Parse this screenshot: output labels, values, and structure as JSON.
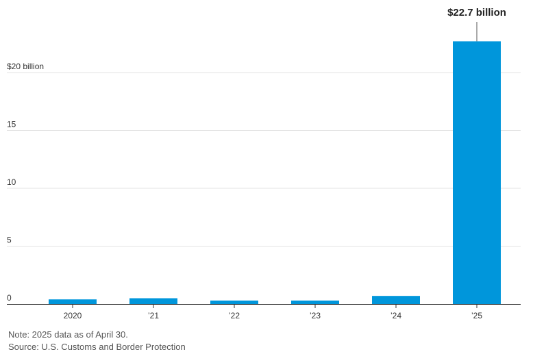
{
  "chart_data": {
    "type": "bar",
    "categories": [
      "2020",
      "’21",
      "’22",
      "’23",
      "’24",
      "’25"
    ],
    "values": [
      0.4,
      0.5,
      0.3,
      0.3,
      0.7,
      22.7
    ],
    "y_tick_values": [
      0,
      5,
      10,
      15,
      20
    ],
    "y_tick_labels": [
      "0",
      "5",
      "10",
      "15",
      "$20 billion"
    ],
    "ylim": [
      0,
      24.2
    ],
    "grid": true,
    "bar_color": "#0096db",
    "annotation": {
      "category": "’25",
      "text": "$22.7 billion"
    }
  },
  "footer": {
    "note": "Note: 2025 data as of April 30.",
    "source": "Source: U.S. Customs and Border Protection"
  }
}
